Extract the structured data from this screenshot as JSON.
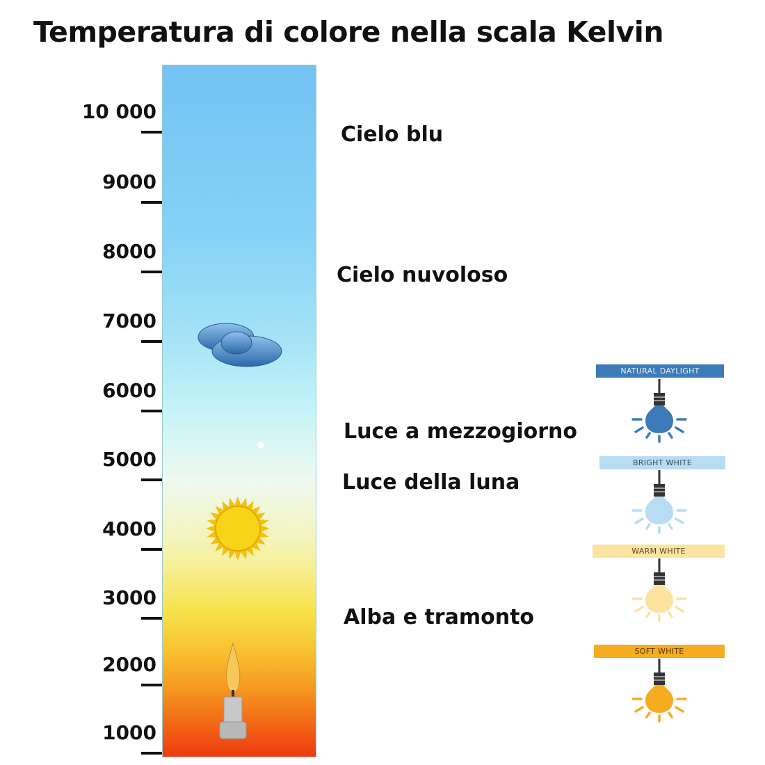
{
  "title": "Temperatura di colore nella scala Kelvin",
  "scale": {
    "unit": "K",
    "ticks": [
      "10 000",
      "9000",
      "8000",
      "7000",
      "6000",
      "5000",
      "4000",
      "3000",
      "2000",
      "1000"
    ]
  },
  "descriptions": [
    "Cielo blu",
    "Cielo nuvoloso",
    "Luce a mezzogiorno",
    "Luce della luna",
    "Alba e tramonto"
  ],
  "bulbs": [
    {
      "label": "NATURAL DAYLIGHT",
      "label_bg": "#3d7ab8",
      "label_color": "#e8f0f8",
      "bulb_color": "#3d7ab8"
    },
    {
      "label": "BRIGHT WHITE",
      "label_bg": "#b8dcf2",
      "label_color": "#3a4a5a",
      "bulb_color": "#b8dcf2"
    },
    {
      "label": "WARM WHITE",
      "label_bg": "#fbe3a0",
      "label_color": "#5a4a2a",
      "bulb_color": "#fbe3a0"
    },
    {
      "label": "SOFT WHITE",
      "label_bg": "#f5ac20",
      "label_color": "#5a3a10",
      "bulb_color": "#f5ac20"
    }
  ],
  "icons": [
    "cloud-icon",
    "sun-icon",
    "candle-icon",
    "light-bulb-icon"
  ]
}
